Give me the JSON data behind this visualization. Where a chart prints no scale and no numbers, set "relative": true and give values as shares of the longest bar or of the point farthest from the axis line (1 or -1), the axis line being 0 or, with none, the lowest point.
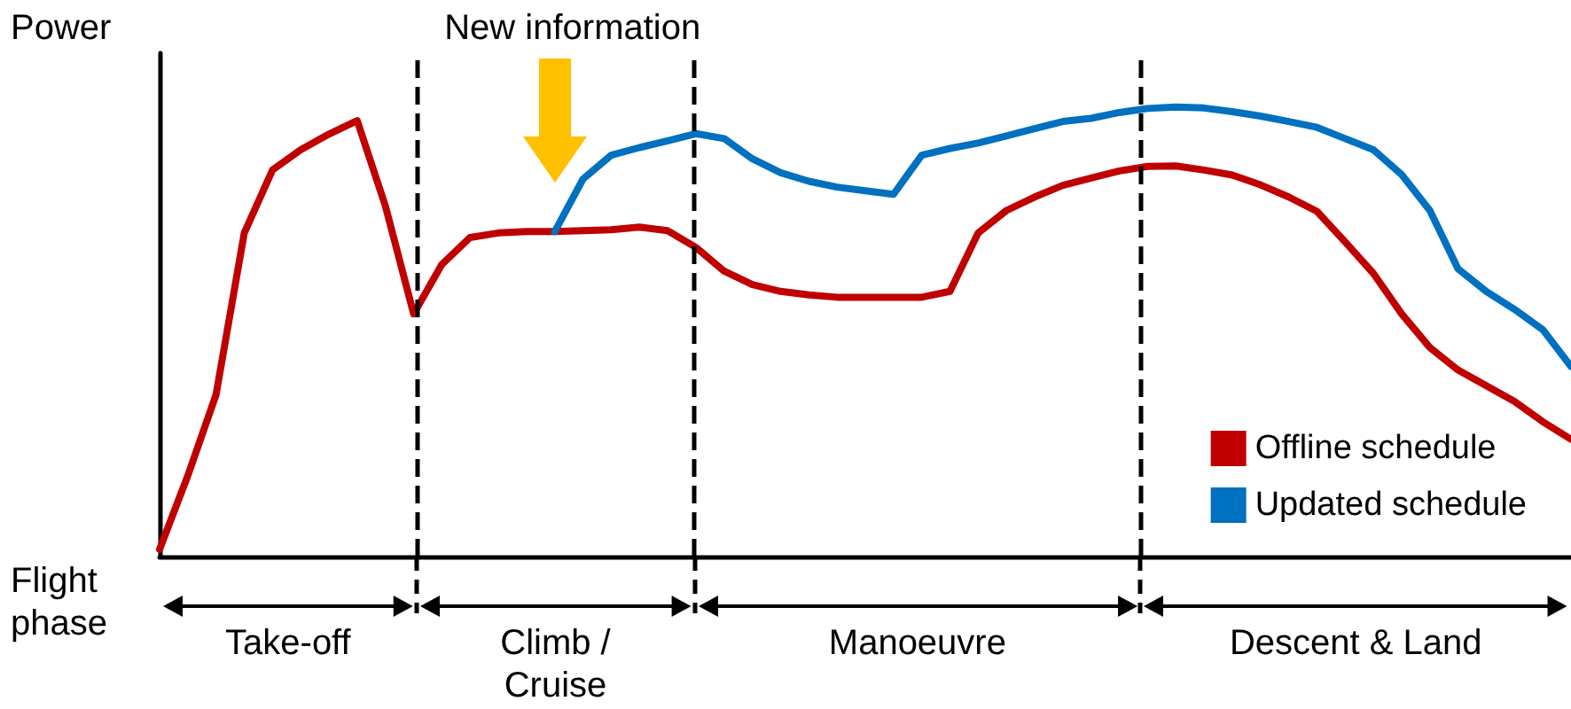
{
  "chart_data": {
    "type": "line",
    "relative": true,
    "ylabel": "Power",
    "xlabel": "Flight phase",
    "categories": [
      null,
      null,
      null,
      null,
      null,
      null,
      null,
      null,
      null,
      null,
      null,
      null,
      null,
      null,
      null,
      null,
      null,
      null,
      null,
      null,
      null,
      null,
      null,
      null,
      null,
      null,
      null,
      null,
      null,
      null,
      null,
      null,
      null,
      null,
      null,
      null,
      null,
      null,
      null,
      null,
      null,
      null,
      null,
      null,
      null,
      null,
      null,
      null,
      null,
      null,
      null
    ],
    "tick_labels": false,
    "grid": false,
    "legend": "bottom right",
    "marker": "none",
    "line_style": "solid",
    "series": [
      {
        "name": "Offline schedule",
        "color": "#c00000",
        "values": [
          0.016,
          0.18,
          0.36,
          0.72,
          0.86,
          0.905,
          0.94,
          0.97,
          0.78,
          0.54,
          0.65,
          0.71,
          0.72,
          0.723,
          0.723,
          0.725,
          0.727,
          0.733,
          0.725,
          0.688,
          0.635,
          0.605,
          0.59,
          0.582,
          0.577,
          0.577,
          0.577,
          0.577,
          0.59,
          0.72,
          0.77,
          0.8,
          0.826,
          0.842,
          0.858,
          0.868,
          0.869,
          0.86,
          0.849,
          0.827,
          0.8,
          0.768,
          0.7,
          0.63,
          0.54,
          0.465,
          0.415,
          0.38,
          0.345,
          0.3,
          0.261
        ]
      },
      {
        "name": "Updated schedule",
        "color": "#0070c0",
        "values": [
          null,
          null,
          null,
          null,
          null,
          null,
          null,
          null,
          null,
          null,
          null,
          null,
          null,
          null,
          0.723,
          0.84,
          0.893,
          0.91,
          0.925,
          0.941,
          0.93,
          0.885,
          0.854,
          0.835,
          0.822,
          0.814,
          0.806,
          0.893,
          0.908,
          0.92,
          0.936,
          0.952,
          0.968,
          0.975,
          0.988,
          0.997,
          1,
          0.998,
          0.99,
          0.98,
          0.968,
          0.955,
          0.93,
          0.905,
          0.85,
          0.77,
          0.64,
          0.59,
          0.55,
          0.505,
          0.423
        ]
      }
    ],
    "annotations": [
      "New information",
      "Take-off",
      "Climb /\nCruise",
      "Manoeuvre",
      "Descent & Land"
    ]
  }
}
